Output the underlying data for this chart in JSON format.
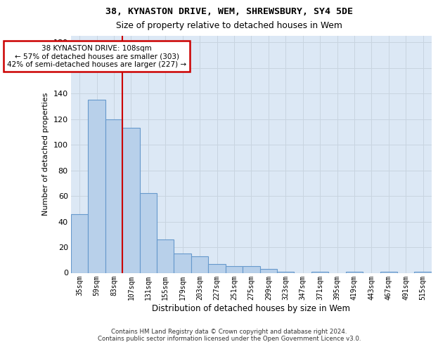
{
  "title1": "38, KYNASTON DRIVE, WEM, SHREWSBURY, SY4 5DE",
  "title2": "Size of property relative to detached houses in Wem",
  "xlabel": "Distribution of detached houses by size in Wem",
  "ylabel": "Number of detached properties",
  "categories": [
    "35sqm",
    "59sqm",
    "83sqm",
    "107sqm",
    "131sqm",
    "155sqm",
    "179sqm",
    "203sqm",
    "227sqm",
    "251sqm",
    "275sqm",
    "299sqm",
    "323sqm",
    "347sqm",
    "371sqm",
    "395sqm",
    "419sqm",
    "443sqm",
    "467sqm",
    "491sqm",
    "515sqm"
  ],
  "values": [
    46,
    135,
    120,
    113,
    62,
    26,
    15,
    13,
    7,
    5,
    5,
    3,
    1,
    0,
    1,
    0,
    1,
    0,
    1,
    0,
    1
  ],
  "bar_color": "#b8d0ea",
  "bar_edge_color": "#6699cc",
  "grid_color": "#c8d4e0",
  "bg_color": "#dce8f5",
  "annotation_text1": "38 KYNASTON DRIVE: 108sqm",
  "annotation_text2": "← 57% of detached houses are smaller (303)",
  "annotation_text3": "42% of semi-detached houses are larger (227) →",
  "annotation_box_facecolor": "#ffffff",
  "annotation_border_color": "#cc0000",
  "vline_color": "#cc0000",
  "vline_x": 2.5,
  "ylim_max": 185,
  "yticks": [
    0,
    20,
    40,
    60,
    80,
    100,
    120,
    140,
    160,
    180
  ],
  "footer1": "Contains HM Land Registry data © Crown copyright and database right 2024.",
  "footer2": "Contains public sector information licensed under the Open Government Licence v3.0."
}
